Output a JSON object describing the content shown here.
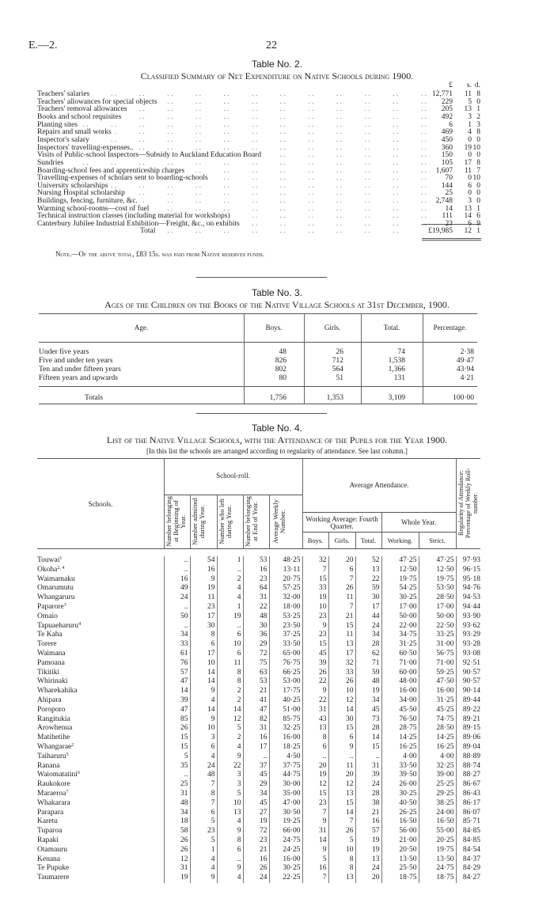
{
  "header": {
    "ref": "E.—2.",
    "page_number": "22"
  },
  "table2": {
    "title": "Table No. 2.",
    "subtitle": "Classified Summary of Net Expenditure on Native Schools during 1900.",
    "col_pounds": "£",
    "col_shillings": "s.",
    "col_pence": "d.",
    "rows": [
      {
        "label": "Teachers' salaries",
        "pounds": "12,771",
        "s": "11",
        "d": "8"
      },
      {
        "label": "Teachers' allowances for special objects",
        "pounds": "229",
        "s": "5",
        "d": "0"
      },
      {
        "label": "Teachers' removal allowances",
        "pounds": "205",
        "s": "13",
        "d": "1"
      },
      {
        "label": "Books and school requisites",
        "pounds": "492",
        "s": "3",
        "d": "2"
      },
      {
        "label": "Planting sites",
        "pounds": "6",
        "s": "1",
        "d": "3"
      },
      {
        "label": "Repairs and small works",
        "pounds": "469",
        "s": "4",
        "d": "8"
      },
      {
        "label": "Inspector's salary",
        "pounds": "450",
        "s": "0",
        "d": "0"
      },
      {
        "label": "Inspectors' travelling-expenses..",
        "pounds": "360",
        "s": "19",
        "d": "10"
      },
      {
        "label": "Visits of Public-school Inspectors—Subsidy to Auckland Education Board",
        "pounds": "150",
        "s": "0",
        "d": "0"
      },
      {
        "label": "Sundries",
        "pounds": "105",
        "s": "17",
        "d": "8"
      },
      {
        "label": "Boarding-school fees and apprenticeship charges",
        "pounds": "1,607",
        "s": "11",
        "d": "7"
      },
      {
        "label": "Travelling-expenses of scholars sent to boarding-schools",
        "pounds": "70",
        "s": "0",
        "d": "10"
      },
      {
        "label": "University scholarships",
        "pounds": "144",
        "s": "6",
        "d": "0"
      },
      {
        "label": "Nursing Hospital scholarship",
        "pounds": "25",
        "s": "0",
        "d": "0"
      },
      {
        "label": "Buildings, fencing, furniture, &c.",
        "pounds": "2,748",
        "s": "3",
        "d": "0"
      },
      {
        "label": "Warming school-rooms—cost of fuel",
        "pounds": "14",
        "s": "13",
        "d": "1"
      },
      {
        "label": "Technical instruction classes (including material for workshops)",
        "pounds": "111",
        "s": "14",
        "d": "6"
      },
      {
        "label": "Canterbury Jubilee Industrial Exhibition—Freight, &c., on exhibits",
        "pounds": "23",
        "s": "6",
        "d": "9"
      }
    ],
    "total": {
      "label": "Total",
      "pounds": "£19,985",
      "s": "12",
      "d": "1"
    },
    "note": "Note.—Of the above total, £83 15s. was paid from Native reserves funds."
  },
  "table3": {
    "title": "Table No. 3.",
    "subtitle": "Ages of the Children on the Books of the Native Village Schools at 31st December, 1900.",
    "columns": [
      "Age.",
      "Boys.",
      "Girls.",
      "Total.",
      "Percentage."
    ],
    "rows": [
      [
        "Under five years",
        "48",
        "26",
        "74",
        "2·38"
      ],
      [
        "Five and under ten years",
        "826",
        "712",
        "1,538",
        "49·47"
      ],
      [
        "Ten and under fifteen years",
        "802",
        "564",
        "1,366",
        "43·94"
      ],
      [
        "Fifteen years and upwards",
        "80",
        "51",
        "131",
        "4·21"
      ]
    ],
    "totals": [
      "Totals",
      "1,756",
      "1,353",
      "3,109",
      "100·00"
    ]
  },
  "table4": {
    "title": "Table No. 4.",
    "subtitle": "List of the Native Village Schools, with the Attendance of the Pupils for the Year 1900.",
    "note": "[In this list the schools are arranged according to regularity of attendance.   See last column.]",
    "headers": {
      "schools": "Schools.",
      "school_roll": "School-roll.",
      "beginning": "Number belonging at Beginning of Year.",
      "admitted": "Number admitted during Year.",
      "left": "Number who left during Year.",
      "end": "Number belonging at End of Year.",
      "avg_weekly": "Average Weekly Number.",
      "avg_attendance": "Average Attendance.",
      "working_avg": "Working Average: Fourth Quarter.",
      "whole_year": "Whole Year.",
      "boys": "Boys.",
      "girls": "Girls.",
      "total": "Total.",
      "working": "Working.",
      "strict": "Strict.",
      "regularity": "Regularity of Attendance: Percentage of Weekly Roll-number."
    },
    "rows": [
      {
        "name": "Touwai",
        "sup": "1",
        "v": [
          "..",
          "54",
          "1",
          "53",
          "48·25",
          "32",
          "20",
          "52",
          "47·25",
          "47·25",
          "97·93"
        ]
      },
      {
        "name": "Okoha",
        "sup": "2, 4",
        "v": [
          "..",
          "16",
          "..",
          "16",
          "13·11",
          "7",
          "6",
          "13",
          "12·50",
          "12·50",
          "96·15"
        ]
      },
      {
        "name": "Waimamaku",
        "sup": "",
        "v": [
          "16",
          "9",
          "2",
          "23",
          "20·75",
          "15",
          "7",
          "22",
          "19·75",
          "19·75",
          "95·18"
        ]
      },
      {
        "name": "Omarumutu",
        "sup": "",
        "v": [
          "49",
          "19",
          "4",
          "64",
          "57·25",
          "33",
          "26",
          "59",
          "54·25",
          "53·50",
          "94·76"
        ]
      },
      {
        "name": "Whangaruru",
        "sup": "",
        "v": [
          "24",
          "11",
          "4",
          "31",
          "32·00",
          "19",
          "11",
          "30",
          "30·25",
          "28·50",
          "94·53"
        ]
      },
      {
        "name": "Paparore",
        "sup": "3",
        "v": [
          "..",
          "23",
          "1",
          "22",
          "18·00",
          "10",
          "7",
          "17",
          "17·00",
          "17·00",
          "94·44"
        ]
      },
      {
        "name": "Omaio",
        "sup": "",
        "v": [
          "50",
          "17",
          "19",
          "48",
          "53·25",
          "23",
          "21",
          "44",
          "50·00",
          "50·00",
          "93·90"
        ]
      },
      {
        "name": "Tapuaeharuru",
        "sup": "4",
        "v": [
          "..",
          "30",
          "..",
          "30",
          "23·50",
          "9",
          "15",
          "24",
          "22·00",
          "22·50",
          "93·62"
        ]
      },
      {
        "name": "Te Kaha",
        "sup": "",
        "v": [
          "34",
          "8",
          "6",
          "36",
          "37·25",
          "23",
          "11",
          "34",
          "34·75",
          "33·25",
          "93·29"
        ]
      },
      {
        "name": "Torere",
        "sup": "",
        "v": [
          "33",
          "6",
          "10",
          "29",
          "33·50",
          "15",
          "13",
          "28",
          "31·25",
          "31·00",
          "93·28"
        ]
      },
      {
        "name": "Waimana",
        "sup": "",
        "v": [
          "61",
          "17",
          "6",
          "72",
          "65·00",
          "45",
          "17",
          "62",
          "60·50",
          "56·75",
          "93·08"
        ]
      },
      {
        "name": "Pamoana",
        "sup": "",
        "v": [
          "76",
          "10",
          "11",
          "75",
          "76·75",
          "39",
          "32",
          "71",
          "71·00",
          "71·00",
          "92·51"
        ]
      },
      {
        "name": "Tikitiki",
        "sup": "",
        "v": [
          "57",
          "14",
          "8",
          "63",
          "66·25",
          "26",
          "33",
          "59",
          "60·00",
          "59·25",
          "90·57"
        ]
      },
      {
        "name": "Whirinaki",
        "sup": "",
        "v": [
          "47",
          "14",
          "8",
          "53",
          "53·00",
          "22",
          "26",
          "48",
          "48·00",
          "47·50",
          "90·57"
        ]
      },
      {
        "name": "Wharekahika",
        "sup": "",
        "v": [
          "14",
          "9",
          "2",
          "21",
          "17·75",
          "9",
          "10",
          "19",
          "16·00",
          "16·00",
          "90·14"
        ]
      },
      {
        "name": "Ahipara",
        "sup": "",
        "v": [
          "39",
          "4",
          "2",
          "41",
          "40·25",
          "22",
          "12",
          "34",
          "34·00",
          "31·25",
          "89·44"
        ]
      },
      {
        "name": "Poroporo",
        "sup": "",
        "v": [
          "47",
          "14",
          "14",
          "47",
          "51·00",
          "31",
          "14",
          "45",
          "45·50",
          "45·25",
          "89·22"
        ]
      },
      {
        "name": "Rangitukia",
        "sup": "",
        "v": [
          "85",
          "9",
          "12",
          "82",
          "85·75",
          "43",
          "30",
          "73",
          "76·50",
          "74·75",
          "89·21"
        ]
      },
      {
        "name": "Arowhenua",
        "sup": "",
        "v": [
          "26",
          "10",
          "5",
          "31",
          "32·25",
          "13",
          "15",
          "28",
          "28·75",
          "28·50",
          "89·15"
        ]
      },
      {
        "name": "Matihetihe",
        "sup": "",
        "v": [
          "15",
          "3",
          "2",
          "16",
          "16·00",
          "8",
          "6",
          "14",
          "14·25",
          "14·25",
          "89·06"
        ]
      },
      {
        "name": "Whangarae",
        "sup": "2",
        "v": [
          "15",
          "6",
          "4",
          "17",
          "18·25",
          "6",
          "9",
          "15",
          "16·25",
          "16·25",
          "89·04"
        ]
      },
      {
        "name": "Taiharuru",
        "sup": "5",
        "v": [
          "5",
          "4",
          "9",
          "..",
          "4·50",
          "..",
          "..",
          "..",
          "4·00",
          "4·00",
          "88·89"
        ]
      },
      {
        "name": "Ranana",
        "sup": "",
        "v": [
          "35",
          "24",
          "22",
          "37",
          "37·75",
          "20",
          "11",
          "31",
          "33·50",
          "32·25",
          "88·74"
        ]
      },
      {
        "name": "Waiomatatini",
        "sup": "6",
        "v": [
          "..",
          "48",
          "3",
          "45",
          "44·75",
          "19",
          "20",
          "39",
          "39·50",
          "39·00",
          "88·27"
        ]
      },
      {
        "name": "Raukokore",
        "sup": "",
        "v": [
          "25",
          "7",
          "3",
          "29",
          "30·00",
          "12",
          "12",
          "24",
          "26·00",
          "25·25",
          "86·67"
        ]
      },
      {
        "name": "Maraeroa",
        "sup": "7",
        "v": [
          "31",
          "8",
          "5",
          "34",
          "35·00",
          "15",
          "13",
          "28",
          "30·25",
          "29·25",
          "86·43"
        ]
      },
      {
        "name": "Whakarara",
        "sup": "",
        "v": [
          "48",
          "7",
          "10",
          "45",
          "47·00",
          "23",
          "15",
          "38",
          "40·50",
          "38·25",
          "86·17"
        ]
      },
      {
        "name": "Parapara",
        "sup": "",
        "v": [
          "34",
          "6",
          "13",
          "27",
          "30·50",
          "7",
          "14",
          "21",
          "26·25",
          "24·00",
          "86·07"
        ]
      },
      {
        "name": "Karetu",
        "sup": "",
        "v": [
          "18",
          "5",
          "4",
          "19",
          "19·25",
          "9",
          "7",
          "16",
          "16·50",
          "16·50",
          "85·71"
        ]
      },
      {
        "name": "Tuparoa",
        "sup": "",
        "v": [
          "58",
          "23",
          "9",
          "72",
          "66·00",
          "31",
          "26",
          "57",
          "56·00",
          "55·00",
          "84·85"
        ]
      },
      {
        "name": "Rapaki",
        "sup": "",
        "v": [
          "26",
          "5",
          "8",
          "23",
          "24·75",
          "14",
          "5",
          "19",
          "21·00",
          "20·25",
          "84·85"
        ]
      },
      {
        "name": "Otamauru",
        "sup": "",
        "v": [
          "26",
          "1",
          "6",
          "21",
          "24·25",
          "9",
          "10",
          "19",
          "20·50",
          "19·75",
          "84·54"
        ]
      },
      {
        "name": "Kenana",
        "sup": "",
        "v": [
          "12",
          "4",
          "..",
          "16",
          "16·00",
          "5",
          "8",
          "13",
          "13·50",
          "13·50",
          "84·37"
        ]
      },
      {
        "name": "Te Pupuke",
        "sup": "",
        "v": [
          "31",
          "4",
          "9",
          "26",
          "30·25",
          "16",
          "8",
          "24",
          "25·50",
          "24·75",
          "84·29"
        ]
      },
      {
        "name": "Taumarere",
        "sup": "",
        "v": [
          "19",
          "9",
          "4",
          "24",
          "22·25",
          "7",
          "13",
          "20",
          "18·75",
          "18·75",
          "84·27"
        ]
      }
    ]
  }
}
